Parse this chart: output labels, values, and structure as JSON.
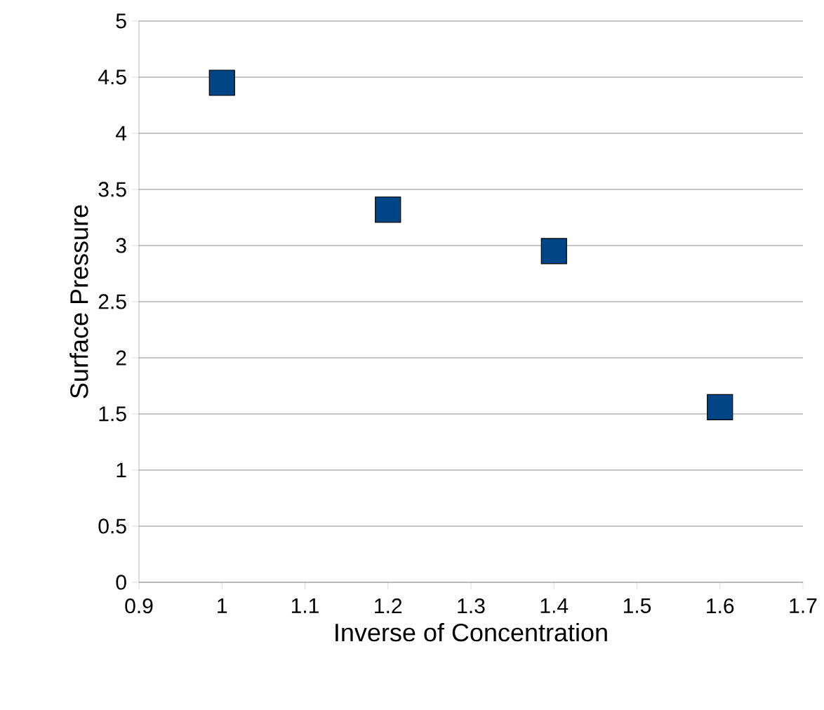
{
  "chart_data": {
    "type": "scatter",
    "xlabel": "Inverse of Concentration",
    "ylabel": "Surface Pressure",
    "x": [
      1,
      1.2,
      1.4,
      1.6
    ],
    "series": [
      {
        "color": "#004586",
        "values": [
          4.45,
          3.32,
          2.95,
          1.56
        ]
      }
    ],
    "xlim": [
      0.9,
      1.7
    ],
    "xticks": [
      0.9,
      1,
      1.1,
      1.2,
      1.3,
      1.4,
      1.5,
      1.6,
      1.7
    ],
    "ylim": [
      0,
      5
    ],
    "yticks": [
      0,
      0.5,
      1,
      1.5,
      2,
      2.5,
      3,
      3.5,
      4,
      4.5,
      5
    ],
    "grid": "y",
    "marker": "square"
  }
}
